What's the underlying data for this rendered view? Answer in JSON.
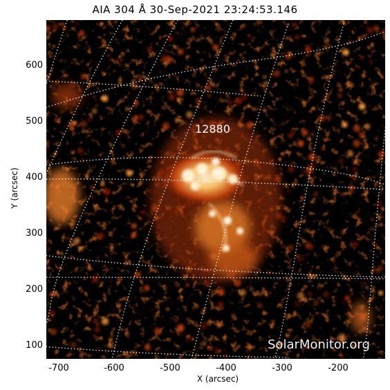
{
  "title": "AIA 304 Å 30-Sep-2021 23:24:53.146",
  "x_axis": {
    "label": "X (arcsec)",
    "ticks": [
      "-700",
      "-600",
      "-500",
      "-400",
      "-300",
      "-200"
    ]
  },
  "y_axis": {
    "label": "Y (arcsec)",
    "ticks": [
      "600",
      "500",
      "400",
      "300",
      "200",
      "100"
    ]
  },
  "active_region_label": "12880",
  "watermark": "SolarMonitor.org",
  "colors": {
    "background": "#000000",
    "emission_low": "#5a0a00",
    "emission_mid": "#d2550f",
    "emission_high": "#fff3d0",
    "grid": "#ffffff"
  }
}
